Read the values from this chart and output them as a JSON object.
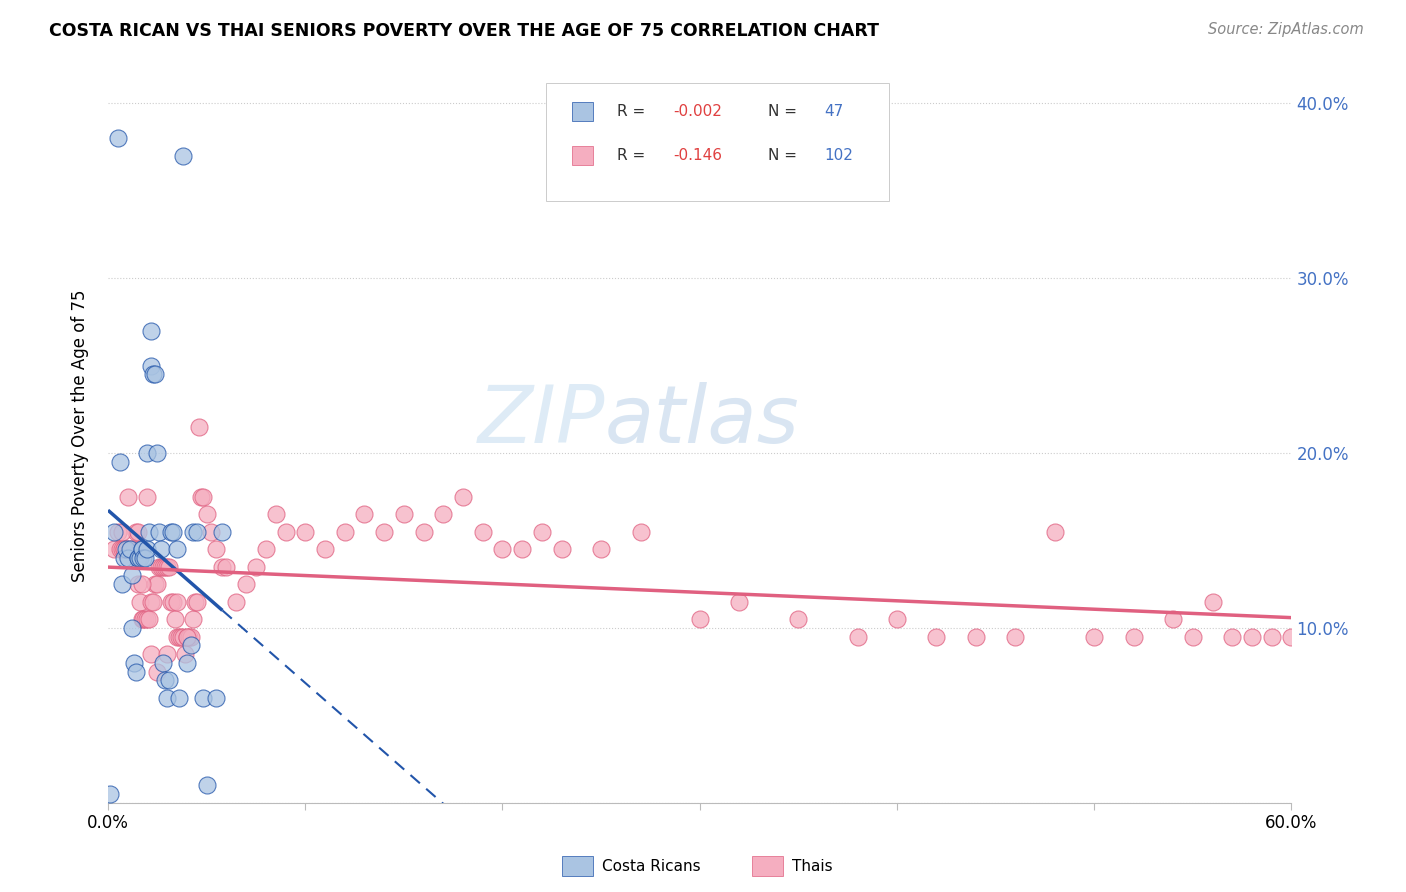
{
  "title": "COSTA RICAN VS THAI SENIORS POVERTY OVER THE AGE OF 75 CORRELATION CHART",
  "source": "Source: ZipAtlas.com",
  "ylabel": "Seniors Poverty Over the Age of 75",
  "xlim": [
    0,
    0.6
  ],
  "ylim": [
    0,
    0.42
  ],
  "costa_rican_color": "#aac4e2",
  "thai_color": "#f5aec0",
  "trendline_cr_color": "#2255aa",
  "trendline_thai_color": "#e06080",
  "cr_R": "-0.002",
  "cr_N": "47",
  "thai_R": "-0.146",
  "thai_N": "102",
  "watermark_zip": "ZIP",
  "watermark_atlas": "atlas",
  "costa_ricans_x": [
    0.001,
    0.003,
    0.005,
    0.006,
    0.007,
    0.008,
    0.009,
    0.01,
    0.011,
    0.012,
    0.012,
    0.013,
    0.014,
    0.015,
    0.015,
    0.016,
    0.017,
    0.017,
    0.018,
    0.019,
    0.02,
    0.02,
    0.021,
    0.022,
    0.022,
    0.023,
    0.024,
    0.025,
    0.026,
    0.027,
    0.028,
    0.029,
    0.03,
    0.031,
    0.032,
    0.033,
    0.035,
    0.036,
    0.038,
    0.04,
    0.042,
    0.043,
    0.045,
    0.048,
    0.05,
    0.055,
    0.058
  ],
  "costa_ricans_y": [
    0.005,
    0.155,
    0.38,
    0.195,
    0.125,
    0.14,
    0.145,
    0.14,
    0.145,
    0.13,
    0.1,
    0.08,
    0.075,
    0.14,
    0.14,
    0.14,
    0.145,
    0.145,
    0.14,
    0.14,
    0.145,
    0.2,
    0.155,
    0.25,
    0.27,
    0.245,
    0.245,
    0.2,
    0.155,
    0.145,
    0.08,
    0.07,
    0.06,
    0.07,
    0.155,
    0.155,
    0.145,
    0.06,
    0.37,
    0.08,
    0.09,
    0.155,
    0.155,
    0.06,
    0.01,
    0.06,
    0.155
  ],
  "thais_x": [
    0.003,
    0.005,
    0.006,
    0.007,
    0.008,
    0.009,
    0.01,
    0.011,
    0.012,
    0.013,
    0.014,
    0.015,
    0.016,
    0.017,
    0.018,
    0.019,
    0.02,
    0.021,
    0.022,
    0.023,
    0.024,
    0.025,
    0.026,
    0.027,
    0.028,
    0.029,
    0.03,
    0.031,
    0.032,
    0.033,
    0.034,
    0.035,
    0.036,
    0.037,
    0.038,
    0.039,
    0.04,
    0.041,
    0.042,
    0.043,
    0.044,
    0.045,
    0.046,
    0.047,
    0.048,
    0.05,
    0.052,
    0.055,
    0.058,
    0.06,
    0.065,
    0.07,
    0.075,
    0.08,
    0.085,
    0.09,
    0.1,
    0.11,
    0.12,
    0.13,
    0.14,
    0.15,
    0.16,
    0.17,
    0.18,
    0.19,
    0.2,
    0.21,
    0.22,
    0.23,
    0.25,
    0.27,
    0.3,
    0.32,
    0.35,
    0.38,
    0.4,
    0.42,
    0.44,
    0.46,
    0.48,
    0.5,
    0.52,
    0.54,
    0.55,
    0.56,
    0.57,
    0.58,
    0.59,
    0.6,
    0.007,
    0.008,
    0.01,
    0.015,
    0.016,
    0.017,
    0.02,
    0.022,
    0.025,
    0.03,
    0.035,
    0.04
  ],
  "thais_y": [
    0.145,
    0.155,
    0.145,
    0.145,
    0.145,
    0.145,
    0.145,
    0.145,
    0.145,
    0.145,
    0.155,
    0.125,
    0.115,
    0.105,
    0.105,
    0.105,
    0.105,
    0.105,
    0.115,
    0.115,
    0.125,
    0.125,
    0.135,
    0.135,
    0.135,
    0.135,
    0.135,
    0.135,
    0.115,
    0.115,
    0.105,
    0.095,
    0.095,
    0.095,
    0.095,
    0.085,
    0.095,
    0.095,
    0.095,
    0.105,
    0.115,
    0.115,
    0.215,
    0.175,
    0.175,
    0.165,
    0.155,
    0.145,
    0.135,
    0.135,
    0.115,
    0.125,
    0.135,
    0.145,
    0.165,
    0.155,
    0.155,
    0.145,
    0.155,
    0.165,
    0.155,
    0.165,
    0.155,
    0.165,
    0.175,
    0.155,
    0.145,
    0.145,
    0.155,
    0.145,
    0.145,
    0.155,
    0.105,
    0.115,
    0.105,
    0.095,
    0.105,
    0.095,
    0.095,
    0.095,
    0.155,
    0.095,
    0.095,
    0.105,
    0.095,
    0.115,
    0.095,
    0.095,
    0.095,
    0.095,
    0.155,
    0.145,
    0.175,
    0.155,
    0.145,
    0.125,
    0.175,
    0.085,
    0.075,
    0.085,
    0.115,
    0.095
  ]
}
